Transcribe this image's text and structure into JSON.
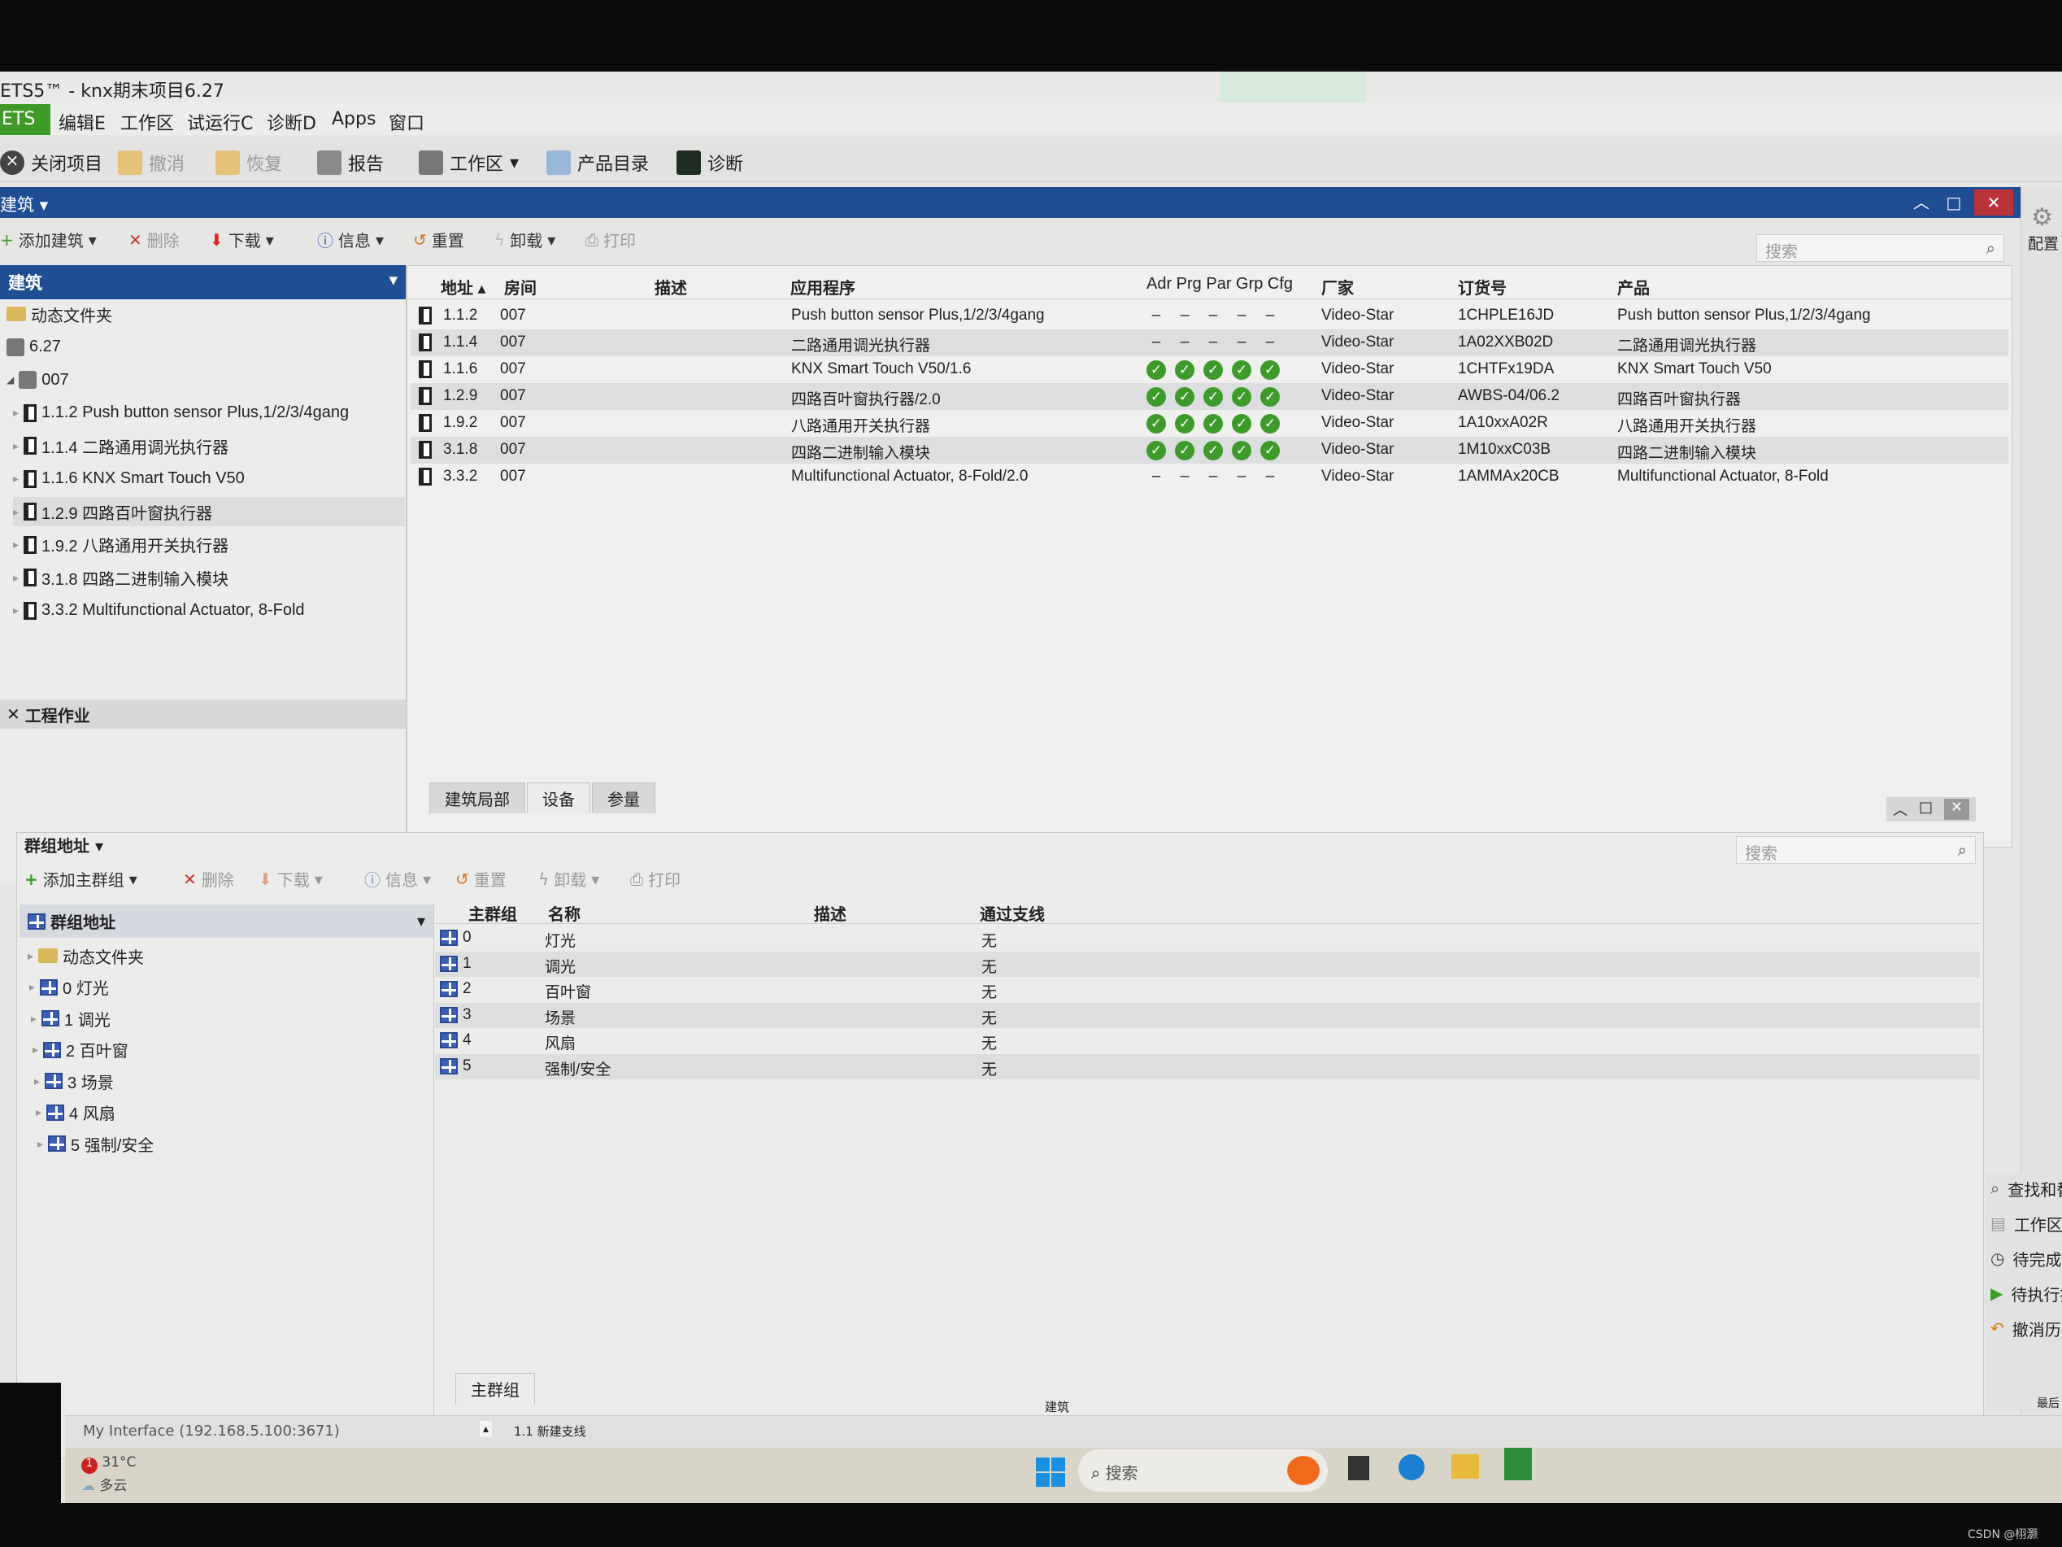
{
  "window": {
    "title": "ETS5™ - knx期末项目6.27"
  },
  "menu": {
    "ets": "ETS",
    "items": [
      "编辑E",
      "工作区",
      "试运行C",
      "诊断D",
      "Apps",
      "窗口"
    ]
  },
  "toolbar": {
    "close_project": "关闭项目",
    "undo": "撤消",
    "redo": "恢复",
    "report": "报告",
    "workspace": "工作区",
    "catalog": "产品目录",
    "diagnostics": "诊断"
  },
  "building_panel": {
    "title": "建筑",
    "toolbar": {
      "add": "添加建筑",
      "delete": "删除",
      "download": "下载",
      "info": "信息",
      "reset": "重置",
      "unload": "卸载",
      "print": "打印"
    },
    "search_placeholder": "搜索"
  },
  "building_tree": {
    "header": "建筑",
    "items": [
      "动态文件夹",
      "6.27",
      "007",
      "1.1.2 Push button sensor Plus,1/2/3/4gang",
      "1.1.4 二路通用调光执行器",
      "1.1.6 KNX Smart Touch V50",
      "1.2.9 四路百叶窗执行器",
      "1.9.2 八路通用开关执行器",
      "3.1.8 四路二进制输入模块",
      "3.3.2 Multifunctional Actuator, 8-Fold"
    ],
    "footer": "工程作业"
  },
  "device_table": {
    "columns": [
      "地址",
      "房间",
      "描述",
      "应用程序",
      "Adr Prg Par Grp Cfg",
      "厂家",
      "订货号",
      "产品"
    ],
    "rows": [
      {
        "addr": "1.1.2",
        "room": "007",
        "desc": "",
        "app": "Push button sensor Plus,1/2/3/4gang",
        "status": "dash",
        "maker": "Video-Star",
        "order": "1CHPLE16JD",
        "product": "Push button sensor Plus,1/2/3/4gang"
      },
      {
        "addr": "1.1.4",
        "room": "007",
        "desc": "",
        "app": "二路通用调光执行器",
        "status": "dash",
        "maker": "Video-Star",
        "order": "1A02XXB02D",
        "product": "二路通用调光执行器"
      },
      {
        "addr": "1.1.6",
        "room": "007",
        "desc": "",
        "app": "KNX Smart Touch V50/1.6",
        "status": "ok",
        "maker": "Video-Star",
        "order": "1CHTFx19DA",
        "product": "KNX Smart Touch V50"
      },
      {
        "addr": "1.2.9",
        "room": "007",
        "desc": "",
        "app": "四路百叶窗执行器/2.0",
        "status": "ok",
        "maker": "Video-Star",
        "order": "AWBS-04/06.2",
        "product": "四路百叶窗执行器"
      },
      {
        "addr": "1.9.2",
        "room": "007",
        "desc": "",
        "app": "八路通用开关执行器",
        "status": "ok",
        "maker": "Video-Star",
        "order": "1A10xxA02R",
        "product": "八路通用开关执行器"
      },
      {
        "addr": "3.1.8",
        "room": "007",
        "desc": "",
        "app": "四路二进制输入模块",
        "status": "ok",
        "maker": "Video-Star",
        "order": "1M10xxC03B",
        "product": "四路二进制输入模块"
      },
      {
        "addr": "3.3.2",
        "room": "007",
        "desc": "",
        "app": "Multifunctional Actuator, 8-Fold/2.0",
        "status": "dash",
        "maker": "Video-Star",
        "order": "1AMMAx20CB",
        "product": "Multifunctional Actuator, 8-Fold"
      }
    ],
    "tabs": [
      "建筑局部",
      "设备",
      "参量"
    ]
  },
  "group_panel": {
    "title": "群组地址",
    "toolbar": {
      "add": "添加主群组",
      "delete": "删除",
      "download": "下载",
      "info": "信息",
      "reset": "重置",
      "unload": "卸载",
      "print": "打印"
    },
    "search_placeholder": "搜索",
    "tree": {
      "header": "群组地址",
      "items": [
        "动态文件夹",
        "0 灯光",
        "1 调光",
        "2 百叶窗",
        "3 场景",
        "4 风扇",
        "5 强制/安全"
      ]
    },
    "columns": [
      "主群组",
      "名称",
      "描述",
      "通过支线"
    ],
    "rows": [
      {
        "id": "0",
        "name": "灯光",
        "via": "无"
      },
      {
        "id": "1",
        "name": "调光",
        "via": "无"
      },
      {
        "id": "2",
        "name": "百叶窗",
        "via": "无"
      },
      {
        "id": "3",
        "name": "场景",
        "via": "无"
      },
      {
        "id": "4",
        "name": "风扇",
        "via": "无"
      },
      {
        "id": "5",
        "name": "强制/安全",
        "via": "无"
      }
    ],
    "tab": "主群组"
  },
  "right_panel": {
    "config": "配置",
    "items": [
      "查找和替",
      "工作区",
      "待完成项",
      "待执行操",
      "撤消历史"
    ],
    "footer": "最后"
  },
  "status_bar": {
    "interface": "My Interface (192.168.5.100:3671)",
    "line": "1.1 新建支线",
    "mode": "建筑"
  },
  "taskbar": {
    "search": "搜索",
    "weather_temp": "31°C",
    "weather_desc": "多云",
    "badge": "1"
  },
  "watermark": "CSDN @栩灏",
  "colors": {
    "accent": "#1f4e93",
    "ets_green": "#3f9a2a",
    "ok": "#3d9a2b",
    "close": "#b8333a"
  }
}
